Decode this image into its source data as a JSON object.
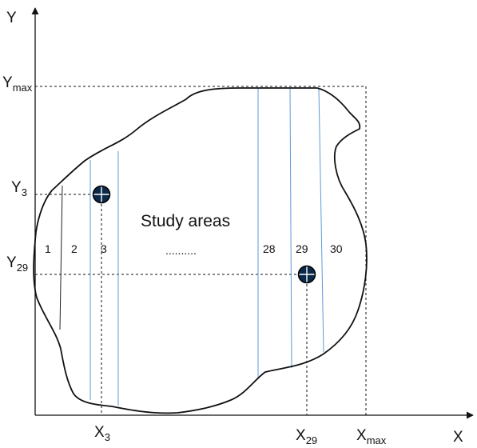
{
  "axes": {
    "y_label": "Y",
    "x_label": "X",
    "y_max": {
      "main": "Y",
      "sub": "max"
    },
    "y3": {
      "main": "Y",
      "sub": "3"
    },
    "y29": {
      "main": "Y",
      "sub": "29"
    },
    "x3": {
      "main": "X",
      "sub": "3"
    },
    "x29": {
      "main": "X",
      "sub": "29"
    },
    "x_max": {
      "main": "X",
      "sub": "max"
    }
  },
  "study_area": {
    "title": "Study areas",
    "ellipsis": "..........",
    "strip_labels": [
      "1",
      "2",
      "3",
      "28",
      "29",
      "30"
    ]
  },
  "colors": {
    "outline": "#111111",
    "strip_line": "#5b9bd5",
    "marker_fill": "#0b2a4a"
  },
  "icons": {
    "marker": "crosshair-circle-icon"
  }
}
